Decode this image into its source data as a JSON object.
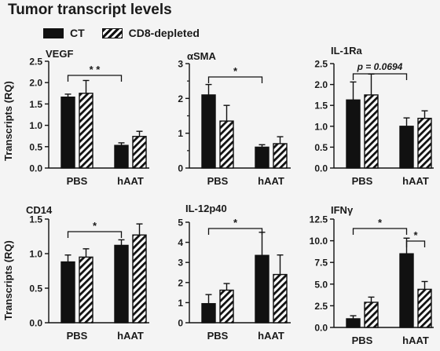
{
  "title": "Tumor transcript levels",
  "legend": {
    "ct": "CT",
    "cd8": "CD8-depleted"
  },
  "ylabel": "Transcripts (RQ)",
  "chart_data": [
    {
      "type": "bar",
      "title": "VEGF",
      "categories": [
        "PBS",
        "hAAT"
      ],
      "series": [
        {
          "name": "CT",
          "values": [
            1.66,
            0.53
          ],
          "errors": [
            0.07,
            0.06
          ]
        },
        {
          "name": "CD8-depleted",
          "values": [
            1.75,
            0.74
          ],
          "errors": [
            0.3,
            0.12
          ]
        }
      ],
      "ylim": [
        0,
        2.5
      ],
      "yticks": [
        "0.0",
        "0.5",
        "1.0",
        "1.5",
        "2.0",
        "2.5"
      ],
      "annotation": "* *"
    },
    {
      "type": "bar",
      "title": "αSMA",
      "categories": [
        "PBS",
        "hAAT"
      ],
      "series": [
        {
          "name": "CT",
          "values": [
            2.1,
            0.6
          ],
          "errors": [
            0.3,
            0.07
          ]
        },
        {
          "name": "CD8-depleted",
          "values": [
            1.35,
            0.7
          ],
          "errors": [
            0.45,
            0.2
          ]
        }
      ],
      "ylim": [
        0,
        3
      ],
      "yticks": [
        "0",
        "1",
        "2",
        "3"
      ],
      "yticks_minor": [
        "0.5",
        "1.5",
        "2.5"
      ],
      "annotation": "*"
    },
    {
      "type": "bar",
      "title": "IL-1Ra",
      "categories": [
        "PBS",
        "hAAT"
      ],
      "series": [
        {
          "name": "CT",
          "values": [
            1.63,
            1.0
          ],
          "errors": [
            0.43,
            0.2
          ]
        },
        {
          "name": "CD8-depleted",
          "values": [
            1.75,
            1.19
          ],
          "errors": [
            0.5,
            0.18
          ]
        }
      ],
      "ylim": [
        0,
        2.5
      ],
      "yticks": [
        "0.0",
        "0.5",
        "1.0",
        "1.5",
        "2.0",
        "2.5"
      ],
      "annotation": "p = 0.0694"
    },
    {
      "type": "bar",
      "title": "CD14",
      "categories": [
        "PBS",
        "hAAT"
      ],
      "series": [
        {
          "name": "CT",
          "values": [
            0.88,
            1.12
          ],
          "errors": [
            0.1,
            0.08
          ]
        },
        {
          "name": "CD8-depleted",
          "values": [
            0.95,
            1.27
          ],
          "errors": [
            0.12,
            0.16
          ]
        }
      ],
      "ylim": [
        0,
        1.5
      ],
      "yticks": [
        "0.0",
        "0.5",
        "1.0",
        "1.5"
      ],
      "annotation": "*"
    },
    {
      "type": "bar",
      "title": "IL-12p40",
      "categories": [
        "PBS",
        "hAAT"
      ],
      "series": [
        {
          "name": "CT",
          "values": [
            0.95,
            3.35
          ],
          "errors": [
            0.45,
            1.15
          ]
        },
        {
          "name": "CD8-depleted",
          "values": [
            1.62,
            2.4
          ],
          "errors": [
            0.33,
            0.97
          ]
        }
      ],
      "ylim": [
        0,
        5
      ],
      "yticks": [
        "0",
        "1",
        "2",
        "3",
        "4",
        "5"
      ],
      "annotation": "*"
    },
    {
      "type": "bar",
      "title": "IFNγ",
      "categories": [
        "PBS",
        "hAAT"
      ],
      "series": [
        {
          "name": "CT",
          "values": [
            1.0,
            8.5
          ],
          "errors": [
            0.35,
            1.8
          ]
        },
        {
          "name": "CD8-depleted",
          "values": [
            2.9,
            4.4
          ],
          "errors": [
            0.6,
            0.9
          ]
        }
      ],
      "ylim": [
        0,
        12.5
      ],
      "yticks": [
        "0.0",
        "2.5",
        "5.0",
        "7.5",
        "10.0",
        "12.5"
      ],
      "annotation": "*",
      "annotation2": "*"
    }
  ]
}
